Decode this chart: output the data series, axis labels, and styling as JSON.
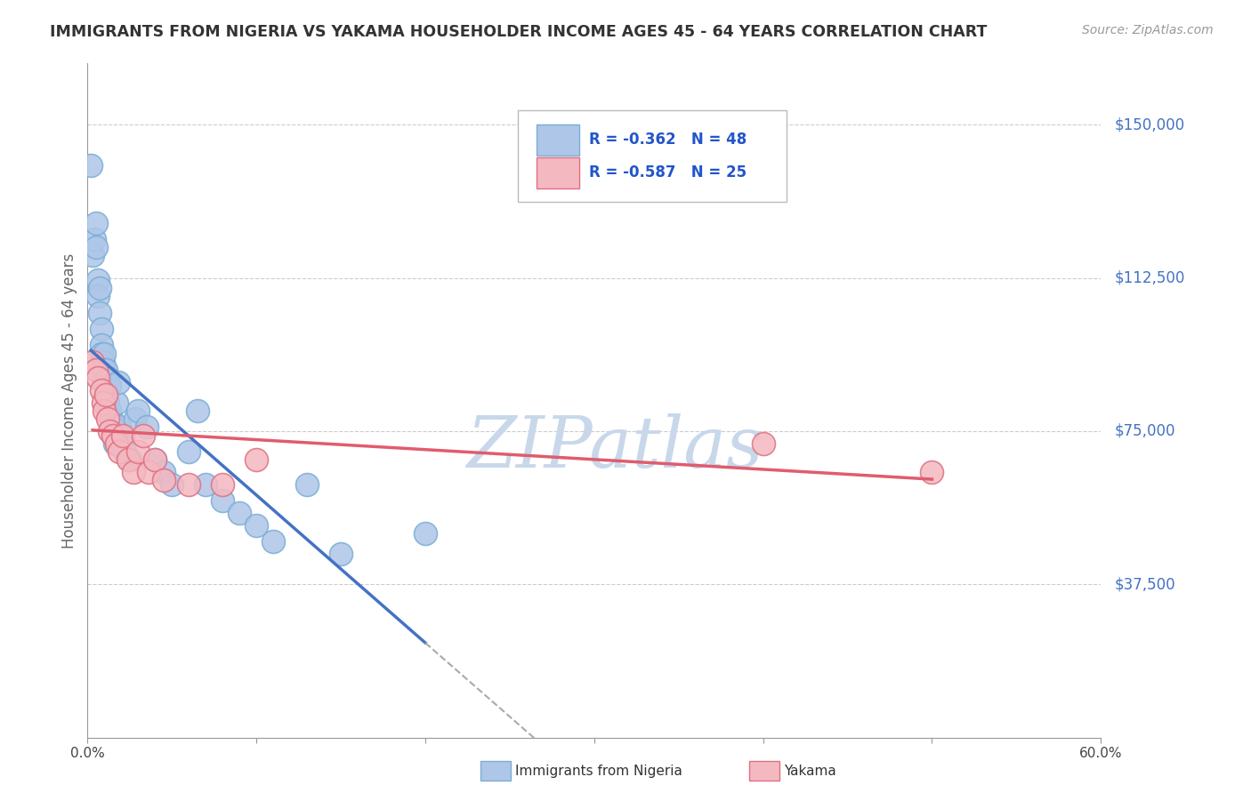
{
  "title": "IMMIGRANTS FROM NIGERIA VS YAKAMA HOUSEHOLDER INCOME AGES 45 - 64 YEARS CORRELATION CHART",
  "source": "Source: ZipAtlas.com",
  "ylabel": "Householder Income Ages 45 - 64 years",
  "xmin": 0.0,
  "xmax": 0.6,
  "ymin": 0,
  "ymax": 165000,
  "yticks": [
    0,
    37500,
    75000,
    112500,
    150000
  ],
  "ytick_labels": [
    "",
    "$37,500",
    "$75,000",
    "$112,500",
    "$150,000"
  ],
  "xtick_positions": [
    0.0,
    0.1,
    0.2,
    0.3,
    0.4,
    0.5,
    0.6
  ],
  "xtick_labels": [
    "0.0%",
    "",
    "",
    "",
    "",
    "",
    "60.0%"
  ],
  "background_color": "#ffffff",
  "grid_color": "#cccccc",
  "nigeria_color": "#aec6e8",
  "nigeria_edge_color": "#7aaed6",
  "yakama_color": "#f4b8c1",
  "yakama_edge_color": "#e07080",
  "nigeria_line_color": "#4472c4",
  "yakama_line_color": "#e05c6e",
  "dashed_line_color": "#aaaaaa",
  "watermark_color": "#c8d8ea",
  "legend_text_color": "#2255cc",
  "nigeria_R": -0.362,
  "nigeria_N": 48,
  "yakama_R": -0.587,
  "yakama_N": 25,
  "nigeria_scatter_x": [
    0.002,
    0.003,
    0.004,
    0.005,
    0.005,
    0.006,
    0.006,
    0.007,
    0.007,
    0.008,
    0.008,
    0.008,
    0.009,
    0.009,
    0.01,
    0.01,
    0.011,
    0.011,
    0.012,
    0.012,
    0.013,
    0.013,
    0.014,
    0.015,
    0.015,
    0.016,
    0.017,
    0.018,
    0.019,
    0.02,
    0.022,
    0.025,
    0.028,
    0.03,
    0.035,
    0.04,
    0.045,
    0.05,
    0.06,
    0.065,
    0.07,
    0.08,
    0.09,
    0.1,
    0.11,
    0.13,
    0.15,
    0.2
  ],
  "nigeria_scatter_y": [
    140000,
    118000,
    122000,
    126000,
    120000,
    112000,
    108000,
    110000,
    104000,
    100000,
    96000,
    94000,
    92000,
    90000,
    94000,
    87000,
    90000,
    84000,
    88000,
    82000,
    86000,
    80000,
    78000,
    76000,
    74000,
    72000,
    82000,
    87000,
    76000,
    72000,
    70000,
    68000,
    78000,
    80000,
    76000,
    68000,
    65000,
    62000,
    70000,
    80000,
    62000,
    58000,
    55000,
    52000,
    48000,
    62000,
    45000,
    50000
  ],
  "yakama_scatter_x": [
    0.003,
    0.005,
    0.006,
    0.008,
    0.009,
    0.01,
    0.011,
    0.012,
    0.013,
    0.015,
    0.017,
    0.019,
    0.021,
    0.024,
    0.027,
    0.03,
    0.033,
    0.036,
    0.04,
    0.045,
    0.06,
    0.08,
    0.1,
    0.4,
    0.5
  ],
  "yakama_scatter_y": [
    92000,
    90000,
    88000,
    85000,
    82000,
    80000,
    84000,
    78000,
    75000,
    74000,
    72000,
    70000,
    74000,
    68000,
    65000,
    70000,
    74000,
    65000,
    68000,
    63000,
    62000,
    62000,
    68000,
    72000,
    65000
  ],
  "nigeria_line_x_start": 0.002,
  "nigeria_line_x_solid_end": 0.2,
  "nigeria_line_x_dash_end": 0.6,
  "yakama_line_x_start": 0.003,
  "yakama_line_x_end": 0.5
}
